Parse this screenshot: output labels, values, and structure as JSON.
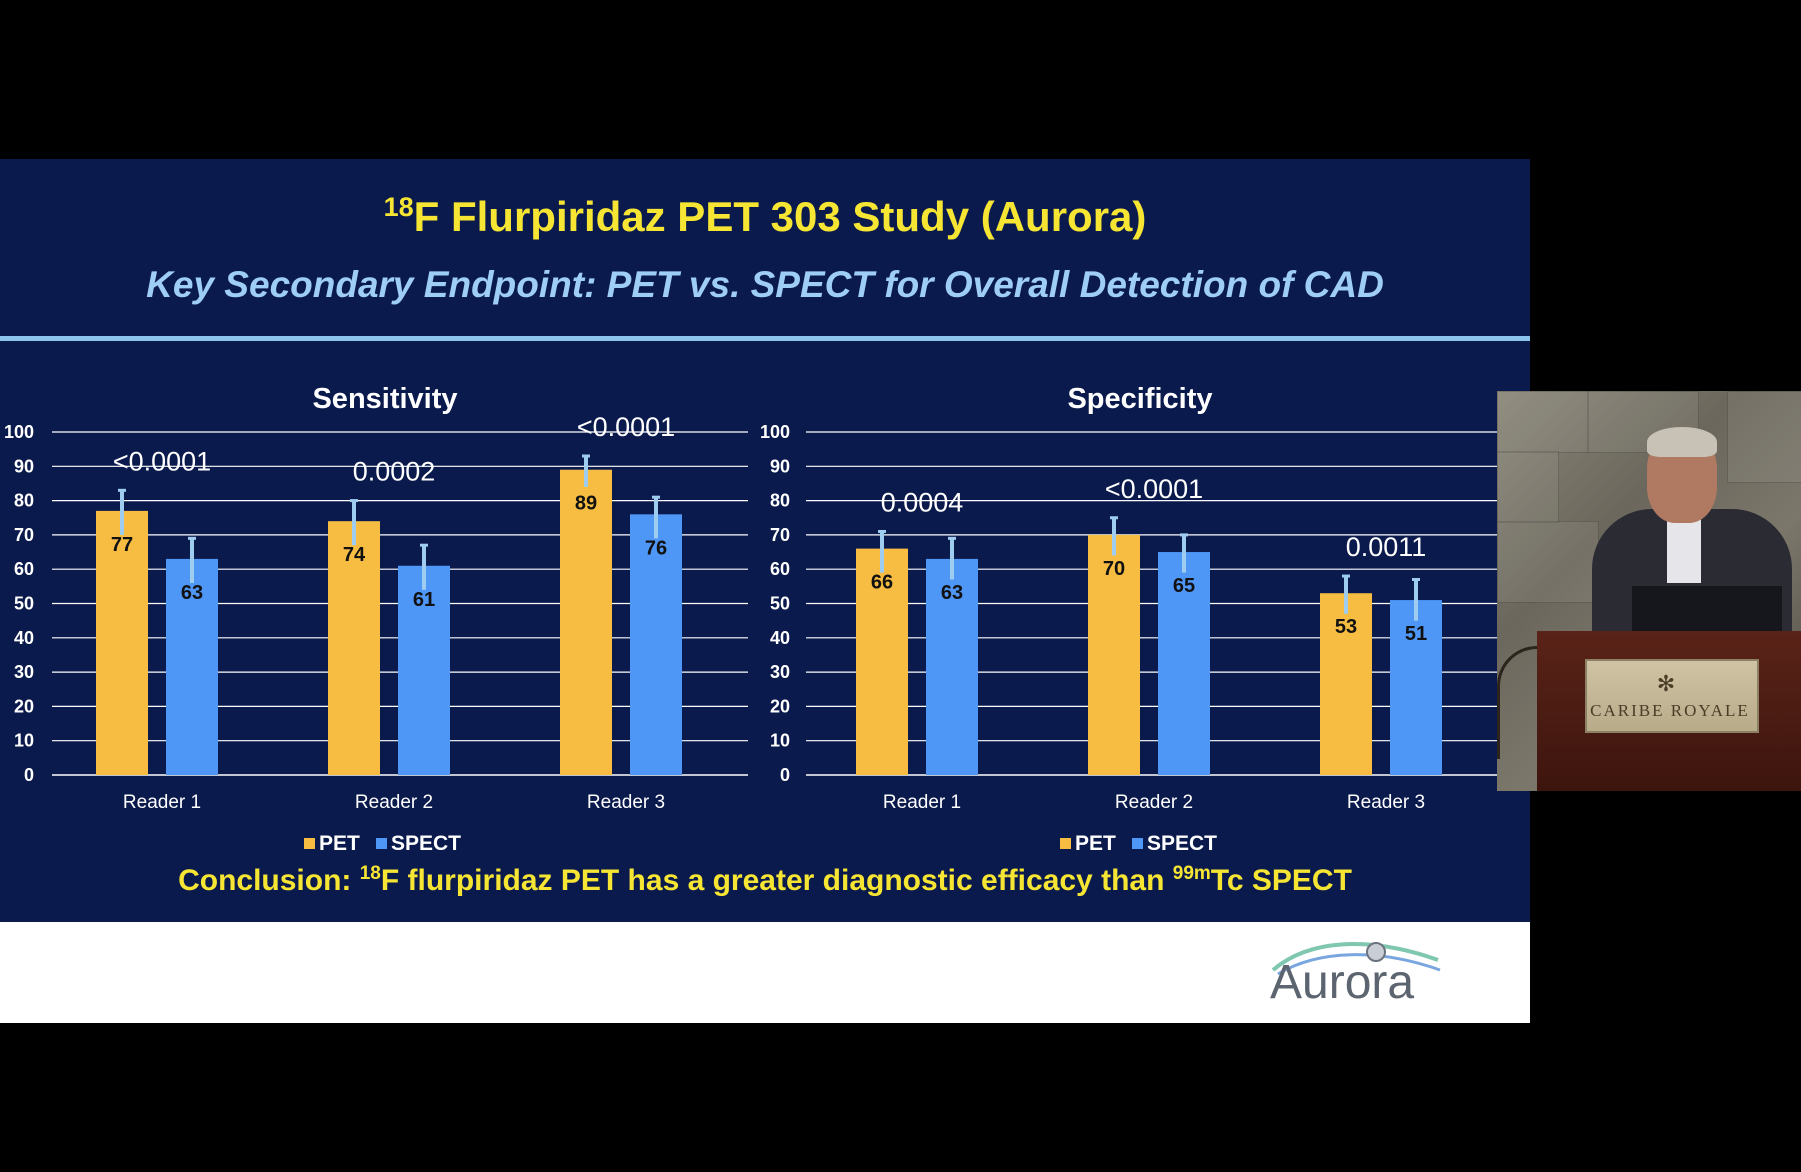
{
  "slide": {
    "title_superscript": "18",
    "title_rest": "F Flurpiridaz PET 303 Study (Aurora)",
    "subtitle": "Key Secondary Endpoint: PET vs. SPECT for Overall Detection of CAD",
    "conclusion": {
      "prefix": "Conclusion: ",
      "sup1": "18",
      "mid": "F flurpiridaz PET has a greater diagnostic efficacy than ",
      "sup2": "99m",
      "suffix": "Tc SPECT"
    },
    "logo_text": "Aurora"
  },
  "colors": {
    "background": "#0b1a4c",
    "pet": "#f6bd42",
    "spect": "#4f97f6",
    "error_bar": "#9ecdf0",
    "title": "#f6e533",
    "text": "#ffffff"
  },
  "chart_data": [
    {
      "type": "bar",
      "title": "Sensitivity",
      "categories": [
        "Reader 1",
        "Reader 2",
        "Reader 3"
      ],
      "series": [
        {
          "name": "PET",
          "values": [
            77,
            74,
            89
          ],
          "error_upper": [
            83,
            80,
            93
          ],
          "error_lower": [
            70,
            67,
            84
          ]
        },
        {
          "name": "SPECT",
          "values": [
            63,
            61,
            76
          ],
          "error_upper": [
            69,
            67,
            81
          ],
          "error_lower": [
            56,
            54,
            69
          ]
        }
      ],
      "p_values": [
        "<0.0001",
        "0.0002",
        "<0.0001"
      ],
      "ylim": [
        0,
        100
      ],
      "yticks": [
        0,
        10,
        20,
        30,
        40,
        50,
        60,
        70,
        80,
        90,
        100
      ],
      "legend": "bottom",
      "grid": true
    },
    {
      "type": "bar",
      "title": "Specificity",
      "categories": [
        "Reader 1",
        "Reader 2",
        "Reader 3"
      ],
      "series": [
        {
          "name": "PET",
          "values": [
            66,
            70,
            53
          ],
          "error_upper": [
            71,
            75,
            58
          ],
          "error_lower": [
            59,
            64,
            47
          ]
        },
        {
          "name": "SPECT",
          "values": [
            63,
            65,
            51
          ],
          "error_upper": [
            69,
            70,
            57
          ],
          "error_lower": [
            57,
            59,
            45
          ]
        }
      ],
      "p_values": [
        "0.0004",
        "<0.0001",
        "0.0011"
      ],
      "ylim": [
        0,
        100
      ],
      "yticks": [
        0,
        10,
        20,
        30,
        40,
        50,
        60,
        70,
        80,
        90,
        100
      ],
      "legend": "bottom",
      "grid": true
    }
  ],
  "video": {
    "podium_label": "CARIBE ROYALE"
  }
}
